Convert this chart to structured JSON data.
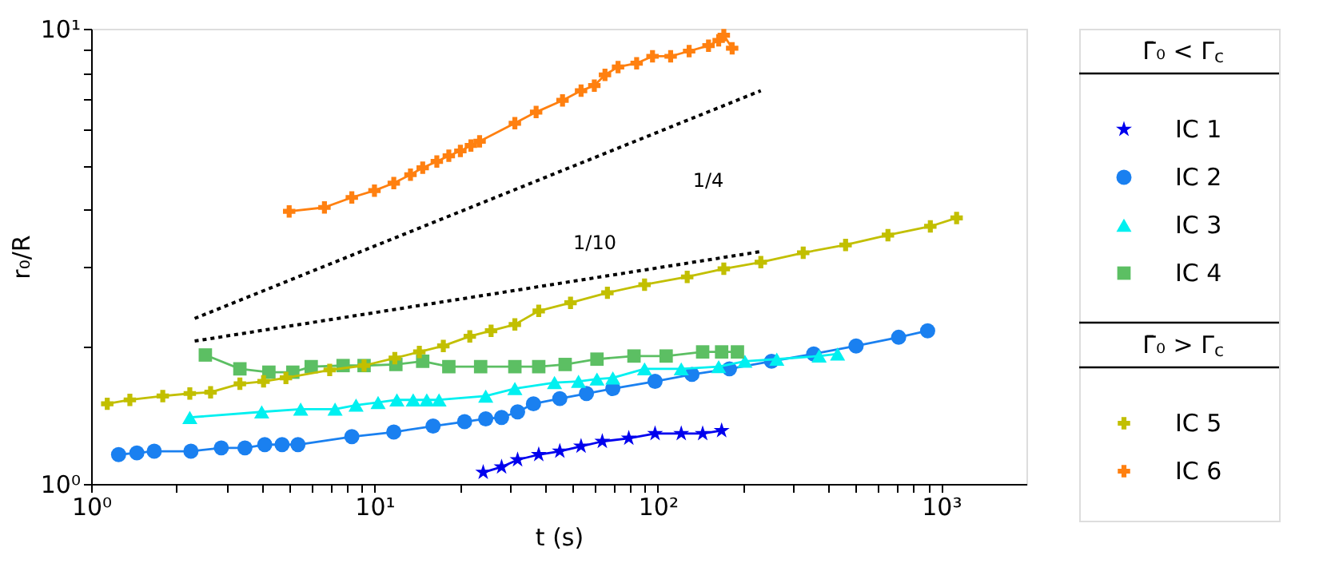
{
  "chart_data": {
    "type": "line",
    "xlabel": "t (s)",
    "ylabel": "r₀/R",
    "log": "xy",
    "grid": false,
    "legend": "right",
    "legend_title": [
      "Γ̄₀ < Γ$_{c}$",
      "Γ̄₀ > Γ$_{c}$"
    ],
    "xlim": [
      1,
      2000
    ],
    "ylim": [
      1,
      10
    ],
    "xticks": [
      {
        "value": 1,
        "label": "10⁰"
      },
      {
        "value": 2,
        "label": null
      },
      {
        "value": 3,
        "label": null
      },
      {
        "value": 4,
        "label": null
      },
      {
        "value": 5,
        "label": null
      },
      {
        "value": 6,
        "label": null
      },
      {
        "value": 7,
        "label": null
      },
      {
        "value": 8,
        "label": null
      },
      {
        "value": 9,
        "label": null
      },
      {
        "value": 10,
        "label": "10¹"
      },
      {
        "value": 20,
        "label": null
      },
      {
        "value": 30,
        "label": null
      },
      {
        "value": 40,
        "label": null
      },
      {
        "value": 50,
        "label": null
      },
      {
        "value": 60,
        "label": null
      },
      {
        "value": 70,
        "label": null
      },
      {
        "value": 80,
        "label": null
      },
      {
        "value": 90,
        "label": null
      },
      {
        "value": 100,
        "label": "10²"
      },
      {
        "value": 200,
        "label": null
      },
      {
        "value": 300,
        "label": null
      },
      {
        "value": 400,
        "label": null
      },
      {
        "value": 500,
        "label": null
      },
      {
        "value": 600,
        "label": null
      },
      {
        "value": 700,
        "label": null
      },
      {
        "value": 800,
        "label": null
      },
      {
        "value": 900,
        "label": null
      },
      {
        "value": 1000,
        "label": "10³"
      }
    ],
    "yticks": [
      {
        "value": 1,
        "label": "10⁰"
      },
      {
        "value": 2,
        "label": null
      },
      {
        "value": 3,
        "label": null
      },
      {
        "value": 4,
        "label": null
      },
      {
        "value": 5,
        "label": null
      },
      {
        "value": 6,
        "label": null
      },
      {
        "value": 7,
        "label": null
      },
      {
        "value": 8,
        "label": null
      },
      {
        "value": 9,
        "label": null
      },
      {
        "value": 10,
        "label": "10¹"
      }
    ],
    "series": [
      {
        "name": "IC 1",
        "color": "#0000ee",
        "marker": "star",
        "line_style": "solid",
        "x": [
          24.2,
          28.1,
          32.0,
          38.0,
          45.1,
          53.6,
          63.7,
          79.0,
          97.8,
          121,
          144,
          168
        ],
        "values": [
          1.06,
          1.09,
          1.13,
          1.16,
          1.18,
          1.21,
          1.24,
          1.26,
          1.29,
          1.29,
          1.29,
          1.31
        ]
      },
      {
        "name": "IC 2",
        "color": "#1a80f0",
        "marker": "circle",
        "line_style": "solid",
        "x": [
          1.25,
          1.45,
          1.67,
          2.25,
          2.88,
          3.49,
          4.1,
          4.72,
          5.37,
          8.32,
          11.7,
          16.1,
          20.8,
          24.7,
          28.1,
          32.0,
          36.4,
          45.1,
          56.0,
          69.4,
          97.8,
          132,
          179,
          252,
          355,
          501,
          708,
          896
        ],
        "values": [
          1.16,
          1.17,
          1.18,
          1.18,
          1.2,
          1.2,
          1.22,
          1.22,
          1.22,
          1.27,
          1.3,
          1.34,
          1.37,
          1.39,
          1.4,
          1.44,
          1.5,
          1.54,
          1.58,
          1.62,
          1.68,
          1.74,
          1.79,
          1.86,
          1.93,
          2.01,
          2.1,
          2.17
        ]
      },
      {
        "name": "IC 3",
        "color": "#00f0f0",
        "marker": "triangle",
        "line_style": "solid",
        "x": [
          2.23,
          4.0,
          5.49,
          7.26,
          8.61,
          10.3,
          12.0,
          13.7,
          15.3,
          16.9,
          24.7,
          31.3,
          43.2,
          52.5,
          61.0,
          69.4,
          89.8,
          121,
          164,
          203,
          263,
          371,
          431
        ],
        "values": [
          1.4,
          1.44,
          1.46,
          1.46,
          1.49,
          1.51,
          1.53,
          1.53,
          1.53,
          1.53,
          1.56,
          1.62,
          1.67,
          1.68,
          1.7,
          1.71,
          1.79,
          1.79,
          1.81,
          1.86,
          1.88,
          1.91,
          1.93
        ]
      },
      {
        "name": "IC 4",
        "color": "#5cbf63",
        "marker": "square",
        "line_style": "solid",
        "x": [
          2.53,
          3.35,
          4.24,
          5.15,
          5.98,
          7.75,
          9.19,
          11.9,
          14.8,
          18.3,
          23.7,
          31.3,
          38.0,
          47.1,
          61.0,
          82.4,
          107,
          144,
          168,
          191
        ],
        "values": [
          1.92,
          1.79,
          1.76,
          1.76,
          1.81,
          1.82,
          1.82,
          1.83,
          1.86,
          1.81,
          1.81,
          1.81,
          1.81,
          1.83,
          1.88,
          1.91,
          1.91,
          1.95,
          1.95,
          1.95
        ]
      },
      {
        "name": "IC 5",
        "color": "#c2bf00",
        "marker": "cross",
        "line_style": "solid",
        "x": [
          1.14,
          1.37,
          1.79,
          2.23,
          2.64,
          3.35,
          4.06,
          4.87,
          6.95,
          9.19,
          11.8,
          14.4,
          17.5,
          21.7,
          25.8,
          31.3,
          38.0,
          49.2,
          66.4,
          89.8,
          127,
          171,
          231,
          326,
          460,
          649,
          916,
          1134
        ],
        "values": [
          1.5,
          1.53,
          1.56,
          1.58,
          1.59,
          1.66,
          1.68,
          1.71,
          1.78,
          1.82,
          1.89,
          1.95,
          2.01,
          2.11,
          2.17,
          2.24,
          2.4,
          2.5,
          2.63,
          2.74,
          2.85,
          2.97,
          3.07,
          3.22,
          3.35,
          3.52,
          3.68,
          3.84
        ]
      },
      {
        "name": "IC 6",
        "color": "#ff8010",
        "marker": "cross",
        "line_style": "solid",
        "x": [
          5.0,
          6.66,
          8.32,
          10.0,
          11.7,
          13.4,
          14.8,
          16.6,
          18.3,
          20.1,
          21.9,
          23.5,
          31.3,
          37.2,
          46.1,
          53.6,
          59.7,
          65.1,
          72.4,
          84.2,
          95.8,
          111,
          129,
          151,
          164,
          171,
          183
        ],
        "values": [
          3.97,
          4.05,
          4.26,
          4.41,
          4.58,
          4.78,
          4.95,
          5.11,
          5.26,
          5.39,
          5.54,
          5.66,
          6.2,
          6.56,
          6.96,
          7.31,
          7.5,
          7.92,
          8.24,
          8.4,
          8.7,
          8.7,
          8.93,
          9.18,
          9.43,
          9.68,
          9.06
        ]
      },
      {
        "color": "#000000",
        "marker": "none",
        "line_style": "dotted",
        "x": [
          2.32,
          231
        ],
        "values": [
          2.31,
          7.31
        ]
      },
      {
        "color": "#000000",
        "marker": "none",
        "line_style": "dotted",
        "x": [
          2.32,
          231
        ],
        "values": [
          2.06,
          3.24
        ]
      }
    ],
    "annotations": [
      "1/4",
      "1/10"
    ]
  }
}
